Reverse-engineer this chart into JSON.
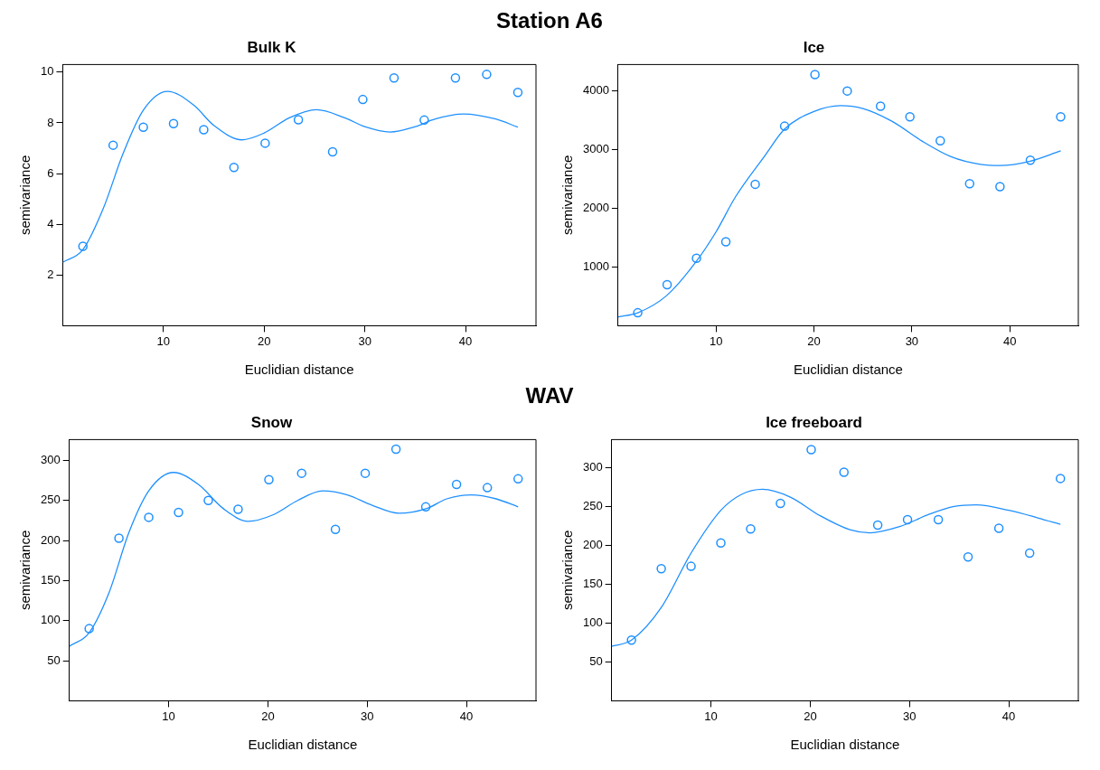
{
  "chart_data": [
    {
      "type": "scatter",
      "title": "Bulk K",
      "annotations": [
        "Station A6"
      ],
      "xlabel": "Euclidian distance",
      "ylabel": "semivariance",
      "xlim": [
        0,
        47
      ],
      "xticks": [
        10,
        20,
        30,
        40
      ],
      "ylim": [
        0,
        10.3
      ],
      "yticks": [
        2,
        4,
        6,
        8,
        10
      ],
      "x": [
        2,
        5,
        8,
        11,
        14,
        17,
        20.1,
        23.4,
        26.8,
        29.8,
        32.9,
        35.9,
        39,
        42.1,
        45.2
      ],
      "series": [
        {
          "type": "scatter",
          "marker": "circle",
          "color": "#1e90ff",
          "values": [
            3.13,
            7.12,
            7.83,
            7.97,
            7.73,
            6.24,
            7.2,
            8.12,
            6.86,
            8.92,
            9.77,
            8.11,
            9.77,
            9.91,
            9.2
          ]
        },
        {
          "type": "line",
          "marker": "none",
          "color": "#1e90ff",
          "x": [
            0,
            2,
            4,
            6,
            8,
            10.4,
            13,
            15,
            17.8,
            20,
            22.5,
            25.2,
            28,
            30,
            32.5,
            35,
            37,
            39.8,
            43,
            45.2
          ],
          "values": [
            2.5,
            3.0,
            4.6,
            6.8,
            8.5,
            9.24,
            8.7,
            7.9,
            7.33,
            7.6,
            8.2,
            8.52,
            8.2,
            7.85,
            7.64,
            7.85,
            8.15,
            8.35,
            8.15,
            7.83
          ]
        }
      ]
    },
    {
      "type": "scatter",
      "title": "Ice",
      "xlabel": "Euclidian distance",
      "ylabel": "semivariance",
      "xlim": [
        0,
        47
      ],
      "xticks": [
        10,
        20,
        30,
        40
      ],
      "ylim": [
        0,
        4450
      ],
      "yticks": [
        1000,
        2000,
        3000,
        4000
      ],
      "x": [
        2,
        5,
        8,
        11,
        14,
        17,
        20.1,
        23.4,
        26.8,
        29.8,
        32.9,
        35.9,
        39,
        42.1,
        45.2
      ],
      "series": [
        {
          "type": "scatter",
          "marker": "circle",
          "color": "#1e90ff",
          "values": [
            220,
            700,
            1150,
            1430,
            2410,
            3400,
            4280,
            4000,
            3740,
            3560,
            3150,
            2420,
            2370,
            2820,
            3560
          ]
        },
        {
          "type": "line",
          "marker": "none",
          "color": "#1e90ff",
          "x": [
            0,
            2,
            5,
            8,
            10,
            12,
            15,
            17,
            20,
            22.7,
            25,
            28,
            31,
            34,
            37,
            39,
            42,
            45.2
          ],
          "values": [
            150,
            220,
            520,
            1100,
            1600,
            2200,
            2900,
            3350,
            3650,
            3750,
            3700,
            3480,
            3150,
            2880,
            2750,
            2730,
            2800,
            2980
          ]
        }
      ]
    },
    {
      "type": "scatter",
      "title": "Snow",
      "annotations": [
        "WAV"
      ],
      "xlabel": "Euclidian distance",
      "ylabel": "semivariance",
      "xlim": [
        0,
        47
      ],
      "xticks": [
        10,
        20,
        30,
        40
      ],
      "ylim": [
        0,
        326
      ],
      "yticks": [
        50,
        100,
        150,
        200,
        250,
        300
      ],
      "x": [
        2,
        5,
        8,
        11,
        14,
        17,
        20.1,
        23.4,
        26.8,
        29.8,
        32.9,
        35.9,
        39,
        42.1,
        45.2
      ],
      "series": [
        {
          "type": "scatter",
          "marker": "circle",
          "color": "#1e90ff",
          "values": [
            90,
            203,
            229,
            235,
            250,
            239,
            276,
            284,
            214,
            284,
            314,
            242,
            270,
            266,
            277
          ]
        },
        {
          "type": "line",
          "marker": "none",
          "color": "#1e90ff",
          "x": [
            0,
            2,
            4,
            6,
            8,
            10.5,
            13,
            15.5,
            18,
            20.5,
            23,
            25.5,
            28,
            30.5,
            33.2,
            36,
            38,
            40.5,
            43,
            45.2
          ],
          "values": [
            68,
            85,
            135,
            210,
            262,
            285,
            270,
            240,
            224,
            232,
            250,
            262,
            257,
            244,
            234,
            240,
            252,
            257,
            252,
            242
          ]
        }
      ]
    },
    {
      "type": "scatter",
      "title": "Ice freeboard",
      "xlabel": "Euclidian distance",
      "ylabel": "semivariance",
      "xlim": [
        0,
        47
      ],
      "xticks": [
        10,
        20,
        30,
        40
      ],
      "ylim": [
        0,
        336
      ],
      "yticks": [
        50,
        100,
        150,
        200,
        250,
        300
      ],
      "x": [
        2,
        5,
        8,
        11,
        14,
        17,
        20.1,
        23.4,
        26.8,
        29.8,
        32.9,
        35.9,
        39,
        42.1,
        45.2
      ],
      "series": [
        {
          "type": "scatter",
          "marker": "circle",
          "color": "#1e90ff",
          "values": [
            78,
            170,
            173,
            203,
            221,
            254,
            323,
            294,
            226,
            233,
            233,
            185,
            222,
            190,
            286
          ]
        },
        {
          "type": "line",
          "marker": "none",
          "color": "#1e90ff",
          "x": [
            0,
            2,
            5,
            8,
            11,
            13,
            15.2,
            18,
            21,
            24,
            26,
            29,
            32,
            34.5,
            36.7,
            40,
            43,
            45.2
          ],
          "values": [
            70,
            78,
            120,
            190,
            245,
            265,
            272,
            262,
            238,
            220,
            216,
            224,
            240,
            250,
            252,
            245,
            235,
            227
          ]
        }
      ]
    }
  ]
}
